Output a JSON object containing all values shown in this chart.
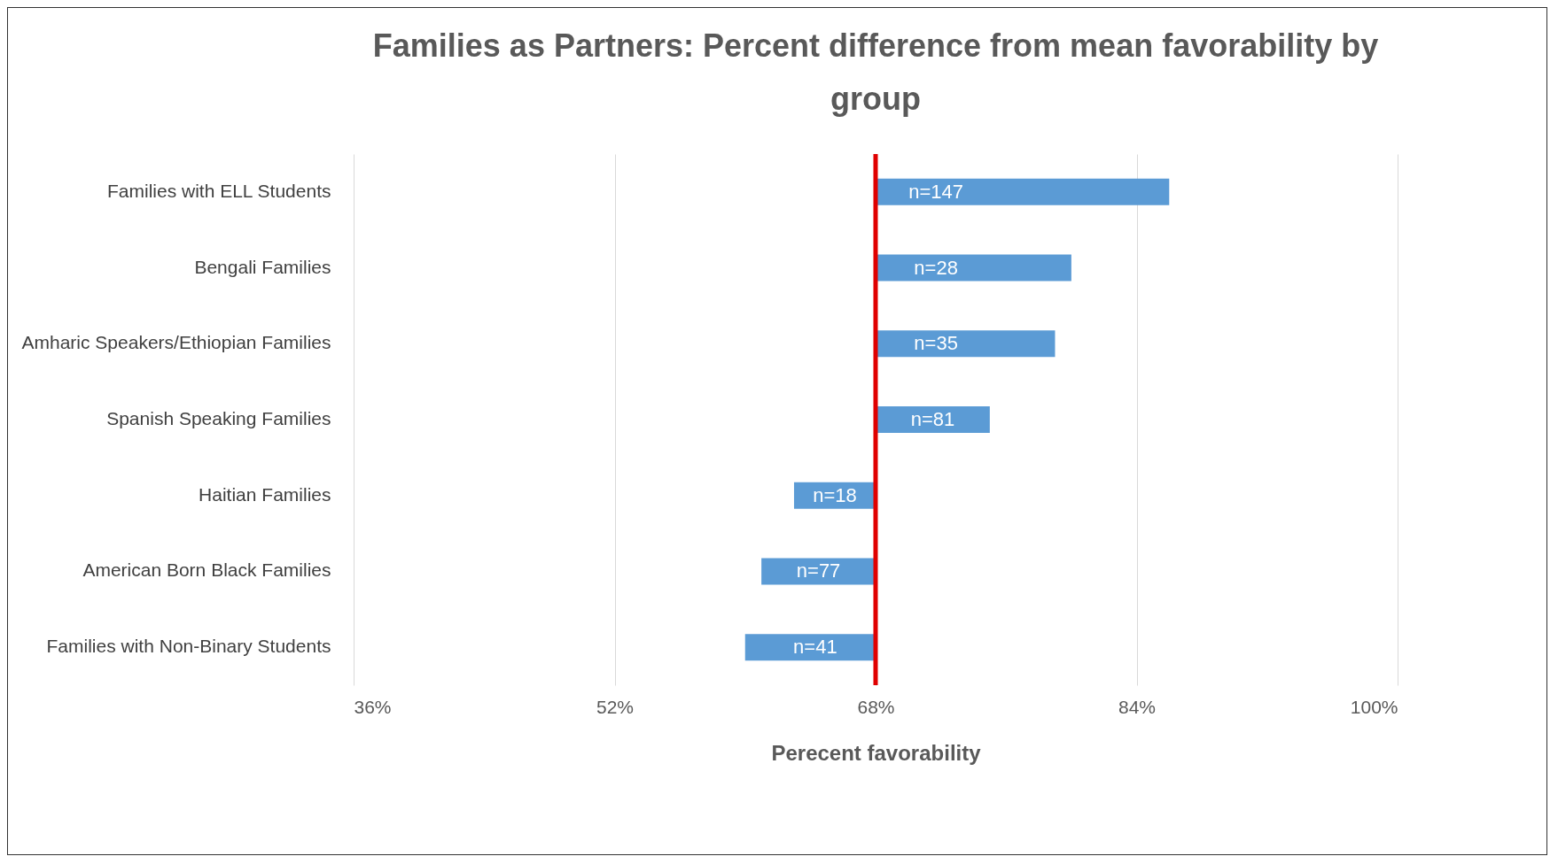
{
  "chart_data": {
    "type": "bar",
    "orientation": "horizontal",
    "title": "Families as Partners: Percent difference from mean favorability by group",
    "xlabel": "Perecent favorability",
    "categories": [
      "Families with ELL Students",
      "Bengali Families",
      "Amharic Speakers/Ethiopian Families",
      "Spanish Speaking Families",
      "Haitian Families",
      "American Born Black Families",
      "Families with Non-Binary Students"
    ],
    "base": [
      68,
      68,
      68,
      68,
      68,
      68,
      68
    ],
    "values": [
      18,
      12,
      11,
      7,
      -5,
      -7,
      -8
    ],
    "annotations": [
      "n=147",
      "n=28",
      "n=35",
      "n=81",
      "n=18",
      "n=77",
      "n=41"
    ],
    "color": "#5b9bd5",
    "xlim": [
      36,
      100
    ],
    "xticks": [
      {
        "value": 36,
        "label": "36%"
      },
      {
        "value": 52,
        "label": "52%"
      },
      {
        "value": 68,
        "label": "68%"
      },
      {
        "value": 84,
        "label": "84%"
      },
      {
        "value": 100,
        "label": "100%"
      }
    ],
    "grid": "x",
    "ref_lines": [
      {
        "axis": "x",
        "value": 68,
        "color": "#e00000"
      }
    ]
  }
}
